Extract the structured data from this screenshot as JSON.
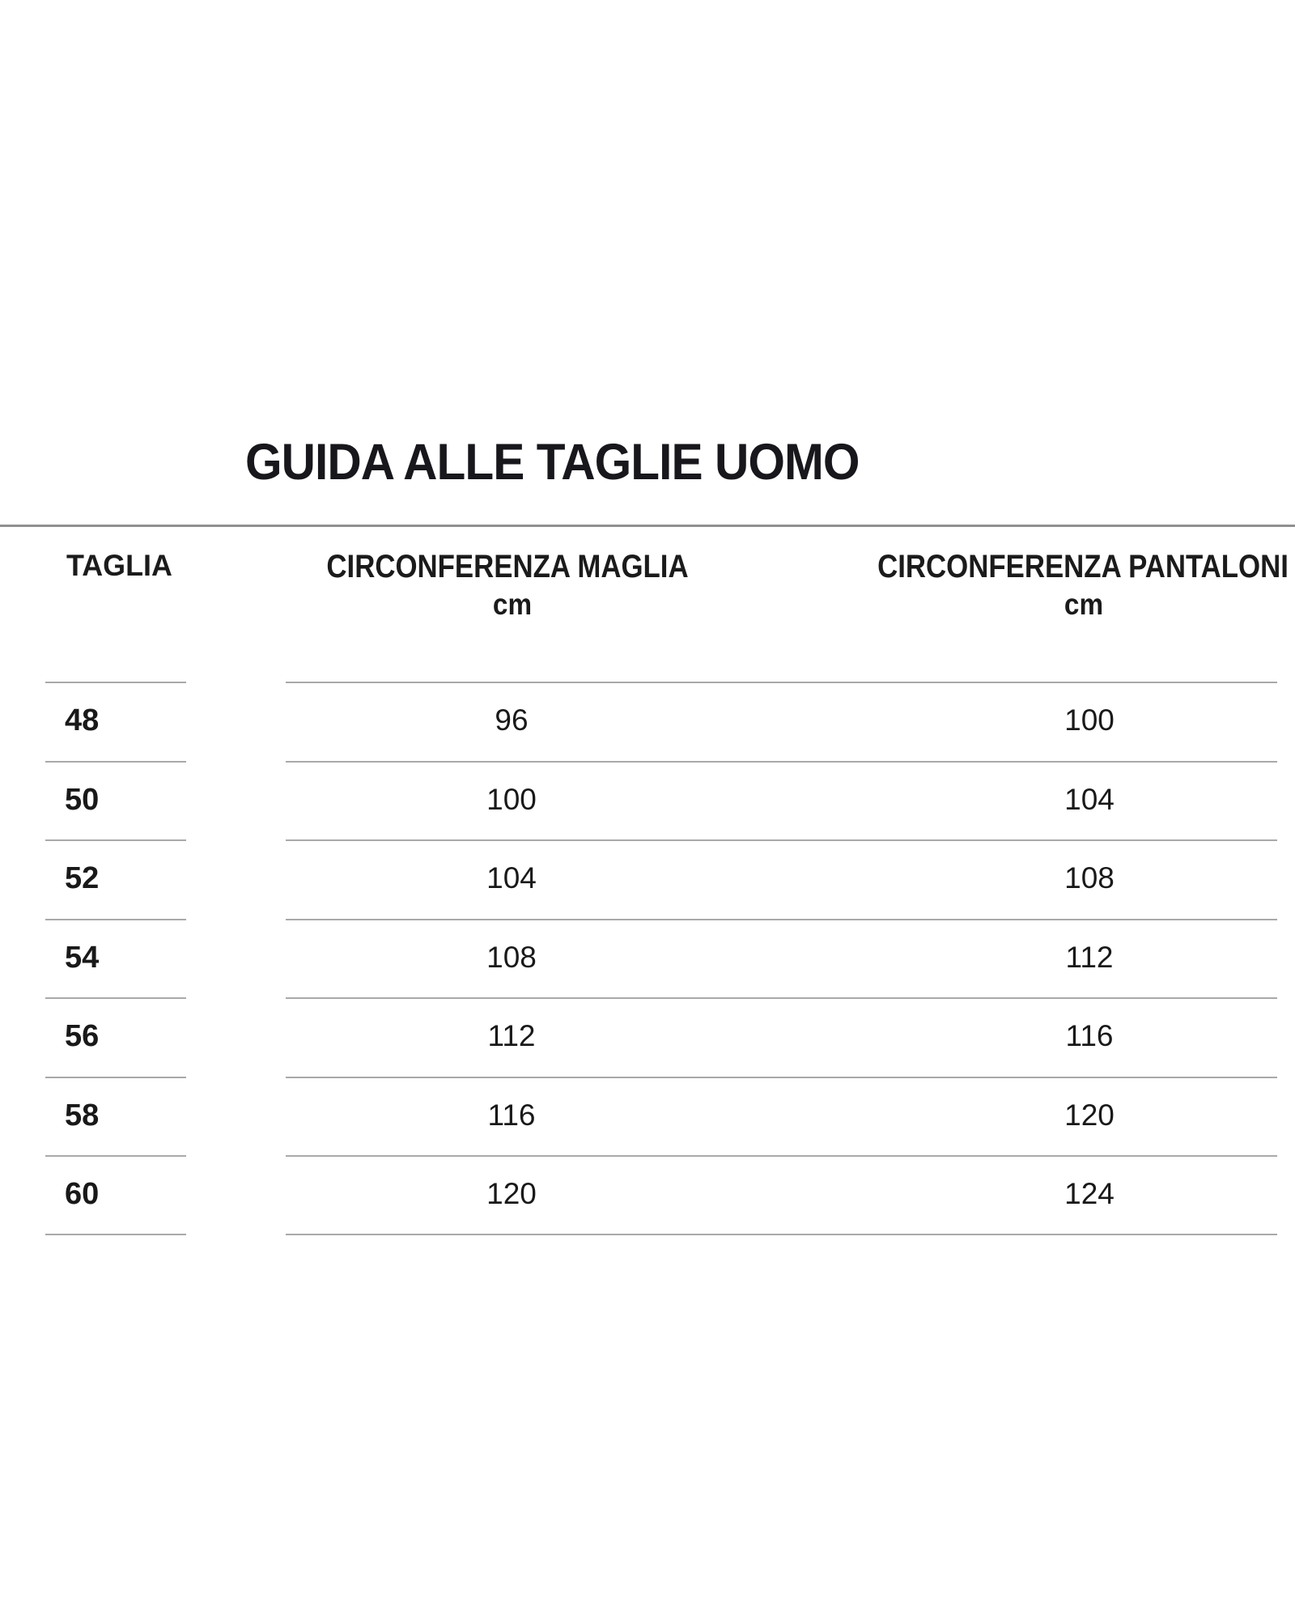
{
  "page": {
    "title": "GUIDA ALLE TAGLIE UOMO",
    "colors": {
      "background": "#ffffff",
      "text": "#1a1a1a",
      "title_text": "#17171c",
      "header_rule": "#909090",
      "row_divider": "#a9a9a9"
    }
  },
  "table": {
    "columns": [
      {
        "label": "TAGLIA",
        "unit": ""
      },
      {
        "label": "CIRCONFERENZA MAGLIA",
        "unit": "cm"
      },
      {
        "label": "CIRCONFERENZA PANTALONI",
        "unit": "cm"
      }
    ],
    "rows": [
      {
        "taglia": "48",
        "maglia": "96",
        "pantaloni": "100"
      },
      {
        "taglia": "50",
        "maglia": "100",
        "pantaloni": "104"
      },
      {
        "taglia": "52",
        "maglia": "104",
        "pantaloni": "108"
      },
      {
        "taglia": "54",
        "maglia": "108",
        "pantaloni": "112"
      },
      {
        "taglia": "56",
        "maglia": "112",
        "pantaloni": "116"
      },
      {
        "taglia": "58",
        "maglia": "116",
        "pantaloni": "120"
      },
      {
        "taglia": "60",
        "maglia": "120",
        "pantaloni": "124"
      }
    ]
  },
  "chart_data": {
    "type": "table",
    "title": "GUIDA ALLE TAGLIE UOMO",
    "columns": [
      "TAGLIA",
      "CIRCONFERENZA MAGLIA cm",
      "CIRCONFERENZA PANTALONI cm"
    ],
    "rows": [
      [
        48,
        96,
        100
      ],
      [
        50,
        100,
        104
      ],
      [
        52,
        104,
        108
      ],
      [
        54,
        108,
        112
      ],
      [
        56,
        112,
        116
      ],
      [
        58,
        116,
        120
      ],
      [
        60,
        120,
        124
      ]
    ]
  }
}
